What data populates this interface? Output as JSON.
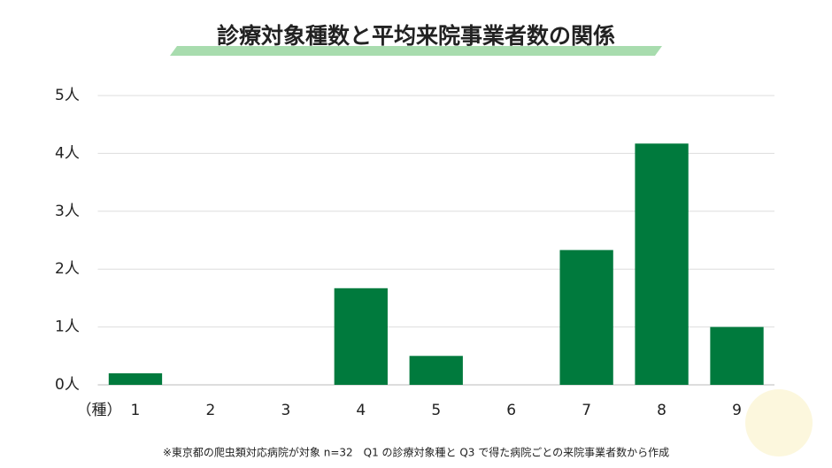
{
  "chart_data": {
    "type": "bar",
    "title": "診療対象種数と平均来院事業者数の関係",
    "x_label": "（種）",
    "categories": [
      "1",
      "2",
      "3",
      "4",
      "5",
      "6",
      "7",
      "8",
      "9"
    ],
    "values": [
      0.2,
      0,
      0,
      1.67,
      0.5,
      0,
      2.33,
      4.17,
      1.0
    ],
    "color": "#007a3d",
    "ylim": [
      0,
      5
    ],
    "yticks": [
      {
        "value": 0,
        "label": "0人"
      },
      {
        "value": 1,
        "label": "1人"
      },
      {
        "value": 2,
        "label": "2人"
      },
      {
        "value": 3,
        "label": "3人"
      },
      {
        "value": 4,
        "label": "4人"
      },
      {
        "value": 5,
        "label": "5人"
      }
    ],
    "grid": true,
    "note": "※東京都の爬虫類対応病院が対象 n=32　Q1 の診療対象種と Q3 で得た病院ごとの来院事業者数から作成"
  }
}
